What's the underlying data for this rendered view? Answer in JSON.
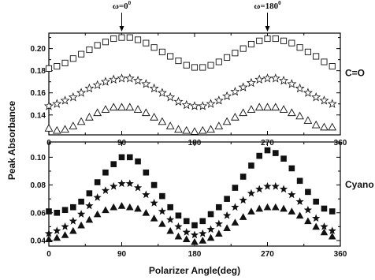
{
  "chart_data": [
    {
      "type": "scatter",
      "panel": "top",
      "side_label": "C=O",
      "xlim": [
        0,
        360
      ],
      "ylim": [
        0.122,
        0.214
      ],
      "xticks": [
        0,
        90,
        180,
        270,
        360
      ],
      "yticks": [
        0.14,
        0.16,
        0.18,
        0.2
      ],
      "ytick_labels": [
        "0.14",
        "0.16",
        "0.18",
        "0.20"
      ],
      "xtick_labels": [
        "0",
        "90",
        "180",
        "270",
        "360"
      ],
      "annotations": [
        {
          "prefix": "ω=0",
          "sup": "0",
          "x": 90
        },
        {
          "prefix": "ω=180",
          "sup": "0",
          "x": 270
        }
      ],
      "series": [
        {
          "marker": "square-open",
          "x": [
            0,
            10,
            20,
            30,
            40,
            50,
            60,
            70,
            80,
            90,
            100,
            110,
            120,
            130,
            140,
            150,
            160,
            170,
            180,
            190,
            200,
            210,
            220,
            230,
            240,
            250,
            260,
            270,
            280,
            290,
            300,
            310,
            320,
            330,
            340,
            350
          ],
          "values": [
            0.182,
            0.184,
            0.187,
            0.191,
            0.195,
            0.199,
            0.203,
            0.206,
            0.209,
            0.21,
            0.21,
            0.208,
            0.205,
            0.201,
            0.197,
            0.193,
            0.189,
            0.185,
            0.183,
            0.183,
            0.185,
            0.188,
            0.192,
            0.196,
            0.2,
            0.204,
            0.207,
            0.209,
            0.209,
            0.207,
            0.205,
            0.201,
            0.197,
            0.193,
            0.188,
            0.184
          ]
        },
        {
          "marker": "star-open",
          "x": [
            0,
            10,
            20,
            30,
            40,
            50,
            60,
            70,
            80,
            90,
            100,
            110,
            120,
            130,
            140,
            150,
            160,
            170,
            180,
            190,
            200,
            210,
            220,
            230,
            240,
            250,
            260,
            270,
            280,
            290,
            300,
            310,
            320,
            330,
            340,
            350
          ],
          "values": [
            0.148,
            0.15,
            0.153,
            0.156,
            0.16,
            0.164,
            0.167,
            0.17,
            0.172,
            0.173,
            0.173,
            0.171,
            0.168,
            0.164,
            0.16,
            0.156,
            0.152,
            0.149,
            0.148,
            0.148,
            0.15,
            0.153,
            0.157,
            0.161,
            0.165,
            0.169,
            0.172,
            0.173,
            0.173,
            0.171,
            0.168,
            0.164,
            0.16,
            0.156,
            0.153,
            0.15
          ]
        },
        {
          "marker": "triangle-open",
          "x": [
            0,
            10,
            20,
            30,
            40,
            50,
            60,
            70,
            80,
            90,
            100,
            110,
            120,
            130,
            140,
            150,
            160,
            170,
            180,
            190,
            200,
            210,
            220,
            230,
            240,
            250,
            260,
            270,
            280,
            290,
            300,
            310,
            320,
            330,
            340,
            350
          ],
          "values": [
            0.128,
            0.126,
            0.127,
            0.13,
            0.134,
            0.138,
            0.142,
            0.145,
            0.147,
            0.147,
            0.147,
            0.145,
            0.142,
            0.138,
            0.134,
            0.13,
            0.127,
            0.126,
            0.125,
            0.126,
            0.127,
            0.13,
            0.134,
            0.138,
            0.142,
            0.145,
            0.147,
            0.147,
            0.147,
            0.145,
            0.142,
            0.139,
            0.135,
            0.131,
            0.129,
            0.129
          ]
        }
      ]
    },
    {
      "type": "scatter",
      "panel": "bottom",
      "side_label": "Cyano",
      "xlabel": "Polarizer Angle(deg)",
      "xlim": [
        0,
        360
      ],
      "ylim": [
        0.036,
        0.111
      ],
      "xticks": [
        0,
        90,
        180,
        270,
        360
      ],
      "yticks": [
        0.04,
        0.06,
        0.08,
        0.1
      ],
      "ytick_labels": [
        "0.04",
        "0.06",
        "0.08",
        "0.10"
      ],
      "xtick_labels": [
        "0",
        "90",
        "180",
        "270",
        "360"
      ],
      "series": [
        {
          "marker": "square-filled",
          "x": [
            0,
            10,
            20,
            30,
            40,
            50,
            60,
            70,
            80,
            90,
            100,
            110,
            120,
            130,
            140,
            150,
            160,
            170,
            180,
            190,
            200,
            210,
            220,
            230,
            240,
            250,
            260,
            270,
            280,
            290,
            300,
            310,
            320,
            330,
            340,
            350
          ],
          "values": [
            0.061,
            0.06,
            0.062,
            0.064,
            0.068,
            0.074,
            0.082,
            0.089,
            0.095,
            0.1,
            0.1,
            0.097,
            0.089,
            0.08,
            0.072,
            0.064,
            0.058,
            0.054,
            0.051,
            0.054,
            0.059,
            0.064,
            0.07,
            0.078,
            0.086,
            0.094,
            0.101,
            0.105,
            0.103,
            0.099,
            0.092,
            0.083,
            0.075,
            0.068,
            0.063,
            0.061
          ]
        },
        {
          "marker": "star-filled",
          "x": [
            0,
            10,
            20,
            30,
            40,
            50,
            60,
            70,
            80,
            90,
            100,
            110,
            120,
            130,
            140,
            150,
            160,
            170,
            180,
            190,
            200,
            210,
            220,
            230,
            240,
            250,
            260,
            270,
            280,
            290,
            300,
            310,
            320,
            330,
            340,
            350
          ],
          "values": [
            0.045,
            0.047,
            0.05,
            0.054,
            0.059,
            0.065,
            0.071,
            0.076,
            0.079,
            0.081,
            0.081,
            0.078,
            0.073,
            0.067,
            0.061,
            0.055,
            0.05,
            0.046,
            0.044,
            0.045,
            0.048,
            0.052,
            0.058,
            0.064,
            0.069,
            0.074,
            0.077,
            0.079,
            0.079,
            0.077,
            0.073,
            0.068,
            0.062,
            0.056,
            0.05,
            0.047
          ]
        },
        {
          "marker": "triangle-filled",
          "x": [
            0,
            10,
            20,
            30,
            40,
            50,
            60,
            70,
            80,
            90,
            100,
            110,
            120,
            130,
            140,
            150,
            160,
            170,
            180,
            190,
            200,
            210,
            220,
            230,
            240,
            250,
            260,
            270,
            280,
            290,
            300,
            310,
            320,
            330,
            340,
            350
          ],
          "values": [
            0.041,
            0.042,
            0.044,
            0.047,
            0.051,
            0.055,
            0.059,
            0.062,
            0.064,
            0.065,
            0.064,
            0.063,
            0.06,
            0.056,
            0.052,
            0.047,
            0.043,
            0.041,
            0.039,
            0.04,
            0.042,
            0.045,
            0.049,
            0.053,
            0.057,
            0.061,
            0.063,
            0.064,
            0.064,
            0.063,
            0.061,
            0.058,
            0.054,
            0.05,
            0.046,
            0.043
          ]
        }
      ]
    }
  ],
  "ylabel": "Peak Absorbance",
  "xlabel": "Polarizer Angle(deg)",
  "colors": {
    "marker": "#111111",
    "axis": "#000000",
    "background": "#ffffff"
  }
}
